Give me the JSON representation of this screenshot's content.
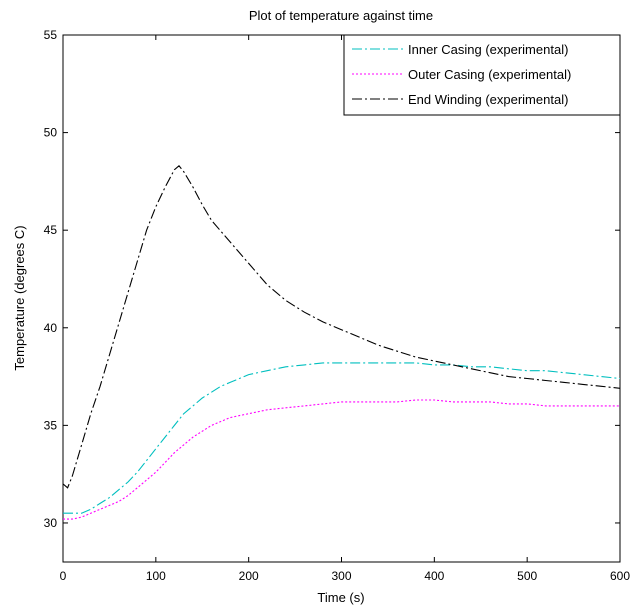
{
  "chart_data": {
    "type": "line",
    "title": "Plot of temperature against time",
    "xlabel": "Time (s)",
    "ylabel": "Temperature (degrees C)",
    "xlim": [
      0,
      600
    ],
    "ylim": [
      28,
      55
    ],
    "xticks": [
      0,
      100,
      200,
      300,
      400,
      500,
      600
    ],
    "yticks": [
      30,
      35,
      40,
      45,
      50,
      55
    ],
    "grid": false,
    "legend_position": "top-right",
    "series": [
      {
        "name": "Inner Casing (experimental)",
        "color": "#00bfbf",
        "style": "dashdot",
        "x": [
          0,
          10,
          20,
          30,
          40,
          50,
          60,
          70,
          80,
          90,
          100,
          110,
          120,
          130,
          140,
          150,
          160,
          170,
          180,
          190,
          200,
          220,
          240,
          260,
          280,
          300,
          320,
          340,
          360,
          380,
          400,
          420,
          440,
          460,
          480,
          500,
          520,
          540,
          560,
          580,
          600
        ],
        "y": [
          30.5,
          30.5,
          30.5,
          30.7,
          31.0,
          31.3,
          31.7,
          32.1,
          32.6,
          33.2,
          33.8,
          34.4,
          35.0,
          35.6,
          36.0,
          36.4,
          36.7,
          37.0,
          37.2,
          37.4,
          37.6,
          37.8,
          38.0,
          38.1,
          38.2,
          38.2,
          38.2,
          38.2,
          38.2,
          38.2,
          38.1,
          38.1,
          38.0,
          38.0,
          37.9,
          37.8,
          37.8,
          37.7,
          37.6,
          37.5,
          37.4
        ]
      },
      {
        "name": "Outer Casing (experimental)",
        "color": "#ff00ff",
        "style": "dotted",
        "x": [
          0,
          10,
          20,
          30,
          40,
          50,
          60,
          70,
          80,
          90,
          100,
          110,
          120,
          130,
          140,
          150,
          160,
          170,
          180,
          190,
          200,
          220,
          240,
          260,
          280,
          300,
          320,
          340,
          360,
          380,
          400,
          420,
          440,
          460,
          480,
          500,
          520,
          540,
          560,
          580,
          600
        ],
        "y": [
          30.2,
          30.2,
          30.3,
          30.5,
          30.7,
          30.9,
          31.1,
          31.4,
          31.8,
          32.2,
          32.6,
          33.1,
          33.6,
          34.0,
          34.4,
          34.7,
          35.0,
          35.2,
          35.4,
          35.5,
          35.6,
          35.8,
          35.9,
          36.0,
          36.1,
          36.2,
          36.2,
          36.2,
          36.2,
          36.3,
          36.3,
          36.2,
          36.2,
          36.2,
          36.1,
          36.1,
          36.0,
          36.0,
          36.0,
          36.0,
          36.0
        ]
      },
      {
        "name": "End Winding (experimental)",
        "color": "#000000",
        "style": "dashdot",
        "x": [
          0,
          5,
          10,
          20,
          30,
          40,
          50,
          60,
          70,
          80,
          90,
          100,
          110,
          120,
          125,
          130,
          140,
          150,
          160,
          180,
          200,
          220,
          240,
          260,
          280,
          300,
          320,
          340,
          360,
          380,
          400,
          420,
          440,
          460,
          480,
          500,
          520,
          540,
          560,
          580,
          600
        ],
        "y": [
          32.0,
          31.8,
          32.4,
          34.0,
          35.6,
          37.0,
          38.6,
          40.2,
          41.8,
          43.4,
          45.0,
          46.2,
          47.2,
          48.1,
          48.3,
          48.0,
          47.2,
          46.3,
          45.5,
          44.4,
          43.3,
          42.2,
          41.4,
          40.8,
          40.3,
          39.9,
          39.5,
          39.1,
          38.8,
          38.5,
          38.3,
          38.1,
          37.9,
          37.7,
          37.5,
          37.4,
          37.3,
          37.2,
          37.1,
          37.0,
          36.9
        ]
      }
    ]
  }
}
